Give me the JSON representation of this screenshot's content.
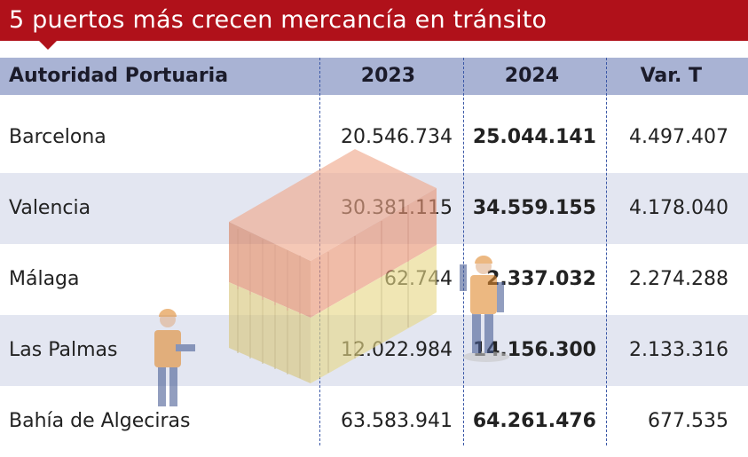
{
  "title": "5 puertos más crecen mercancía en tránsito",
  "headers": {
    "authority": "Autoridad Portuaria",
    "y2023": "2023",
    "y2024": "2024",
    "var": "Var. T"
  },
  "rows": [
    {
      "name": "Barcelona",
      "y2023": "20.546.734",
      "y2024": "25.044.141",
      "var": "4.497.407"
    },
    {
      "name": "Valencia",
      "y2023": "30.381.115",
      "y2024": "34.559.155",
      "var": "4.178.040"
    },
    {
      "name": "Málaga",
      "y2023": "62.744",
      "y2024": "2.337.032",
      "var": "2.274.288"
    },
    {
      "name": "Las Palmas",
      "y2023": "12.022.984",
      "y2024": "14.156.300",
      "var": "2.133.316"
    },
    {
      "name": "Bahía de Algeciras",
      "y2023": "63.583.941",
      "y2024": "64.261.476",
      "var": "677.535"
    }
  ],
  "illustration": {
    "container_top_color": "#e8906e",
    "container_bottom_color": "#e7d887",
    "icons": [
      "shipping-container-icon",
      "port-worker-icon"
    ]
  }
}
